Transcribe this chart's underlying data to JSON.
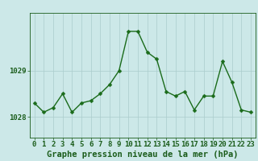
{
  "hours": [
    0,
    1,
    2,
    3,
    4,
    5,
    6,
    7,
    8,
    9,
    10,
    11,
    12,
    13,
    14,
    15,
    16,
    17,
    18,
    19,
    20,
    21,
    22,
    23
  ],
  "pressure": [
    1028.3,
    1028.1,
    1028.2,
    1028.5,
    1028.1,
    1028.3,
    1028.35,
    1028.5,
    1028.7,
    1029.0,
    1029.85,
    1029.85,
    1029.4,
    1029.25,
    1028.55,
    1028.45,
    1028.55,
    1028.15,
    1028.45,
    1028.45,
    1029.2,
    1028.75,
    1028.15,
    1028.1
  ],
  "yticks": [
    1028,
    1029
  ],
  "ylim": [
    1027.55,
    1030.25
  ],
  "xlim": [
    -0.5,
    23.5
  ],
  "line_color": "#1a6b1a",
  "marker_color": "#1a6b1a",
  "bg_color": "#cce8e8",
  "grid_color": "#aacccc",
  "axis_color": "#1a5c1a",
  "tick_label_color": "#1a5c1a",
  "xlabel": "Graphe pression niveau de la mer (hPa)",
  "xlabel_fontsize": 7.5,
  "tick_fontsize": 6.5,
  "ytick_fontsize": 6.5,
  "line_width": 1.0,
  "marker_size": 2.5
}
